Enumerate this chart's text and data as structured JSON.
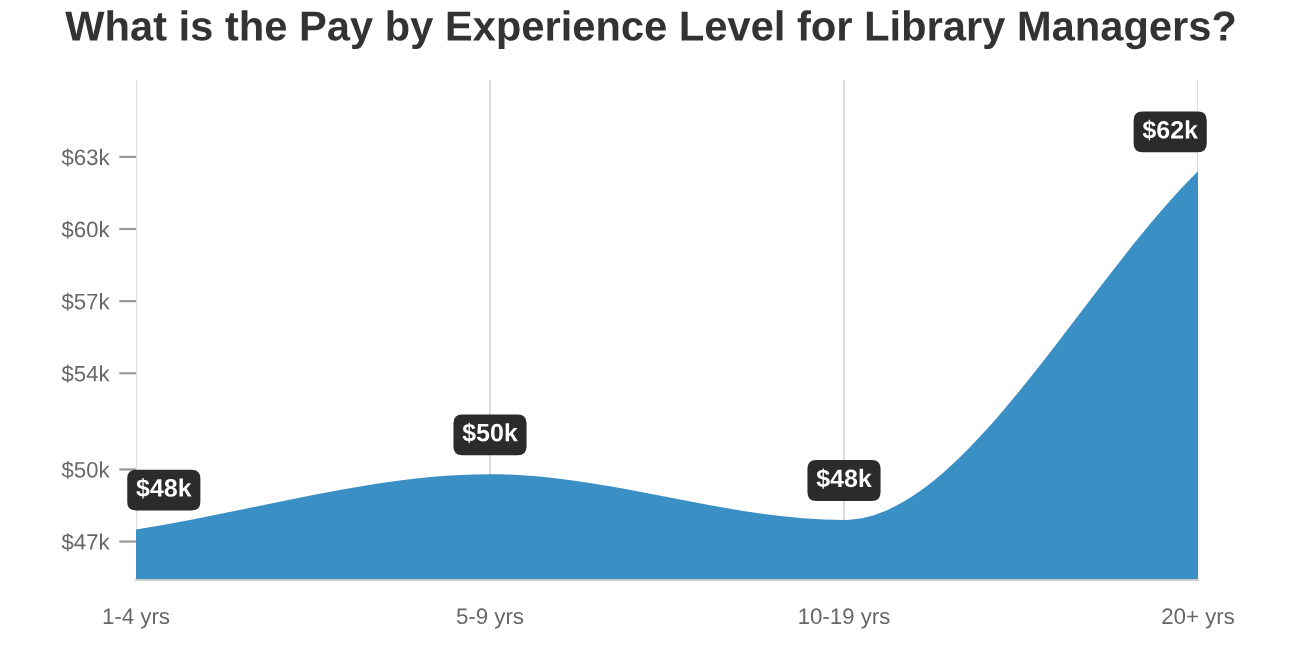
{
  "chart_data": {
    "type": "area",
    "title": "What is the Pay by Experience Level for Library Managers?",
    "categories": [
      "1-4 yrs",
      "5-9 yrs",
      "10-19 yrs",
      "20+ yrs"
    ],
    "values": [
      47.5,
      49.8,
      47.9,
      62.4
    ],
    "value_labels": [
      "$48k",
      "$50k",
      "$48k",
      "$62k"
    ],
    "color": "#3a8fc4",
    "ylim": [
      45.4,
      66.2
    ],
    "yticks": [
      {
        "value": 47,
        "label": "$47k"
      },
      {
        "value": 50,
        "label": "$50k"
      },
      {
        "value": 54,
        "label": "$54k"
      },
      {
        "value": 57,
        "label": "$57k"
      },
      {
        "value": 60,
        "label": "$60k"
      },
      {
        "value": 63,
        "label": "$63k"
      }
    ],
    "grid": "x"
  }
}
